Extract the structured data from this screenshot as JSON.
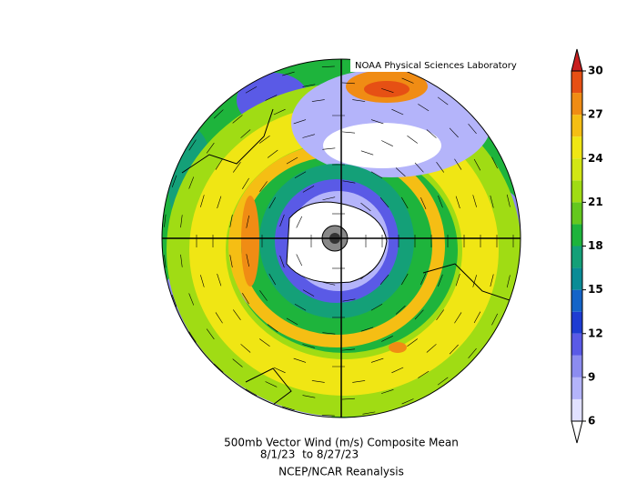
{
  "header": {
    "credit": "NOAA Physical Sciences Laboratory"
  },
  "caption": {
    "lines": [
      "500mb Vector Wind (m/s) Composite Mean",
      "8/1/23  to 8/27/23",
      "NCEP/NCAR Reanalysis"
    ]
  },
  "colorbar": {
    "range": [
      6,
      30
    ],
    "ticks": [
      6,
      9,
      12,
      15,
      18,
      21,
      24,
      27,
      30
    ],
    "colors": [
      "#e1e1ff",
      "#b4b4fa",
      "#8c8cf0",
      "#5a5ae6",
      "#1e3cd2",
      "#1464c8",
      "#0a8c96",
      "#14a078",
      "#1eb43c",
      "#64c81e",
      "#a0dc14",
      "#d2e614",
      "#f0e614",
      "#f5be14",
      "#f08c14",
      "#e65014"
    ],
    "under_color": "#ffffff",
    "over_color": "#c81e1e"
  }
}
